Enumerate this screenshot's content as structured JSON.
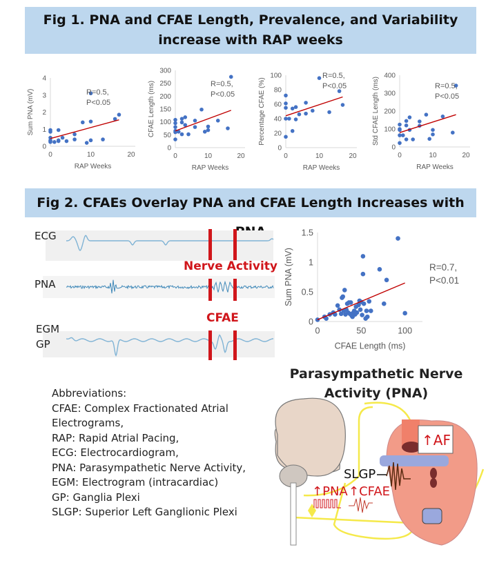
{
  "fig1": {
    "title": "Fig 1. PNA and CFAE Length, Prevalence, and Variability increase with RAP weeks"
  },
  "fig2": {
    "title": "Fig 2. CFAEs Overlay PNA and CFAE Length Increases with PNA",
    "traces": {
      "ecg": "ECG",
      "pna": "PNA",
      "egm": "EGM",
      "gp": "GP",
      "nerve_activity": "Nerve Activity",
      "cfae": "CFAE"
    }
  },
  "abbreviations": {
    "heading": "Abbreviations:",
    "lines": [
      "CFAE: Complex Fractionated Atrial",
      "Electrograms,",
      "RAP: Rapid Atrial Pacing,",
      "ECG: Electrocardiogram,",
      "PNA: Parasympathetic Nerve Activity,",
      "EGM: Electrogram (intracardiac)",
      "GP: Ganglia Plexi",
      "SLGP: Superior Left Ganglionic Plexi"
    ]
  },
  "illustration": {
    "title_line1": "Parasympathetic Nerve",
    "title_line2": "Activity (PNA)",
    "slgp": "SLGP",
    "pna": "PNA",
    "cfae": "CFAE",
    "af": "AF"
  },
  "colors": {
    "banner": "#bdd7ee",
    "point": "#4472c4",
    "trend": "#c00000",
    "highlight": "#d0161b",
    "nerve": "#f5e94a"
  },
  "chart_data": [
    {
      "type": "scatter",
      "xlabel": "RAP Weeks",
      "ylabel": "Sum PNA (mV)",
      "xlim": [
        0,
        20
      ],
      "ylim": [
        0,
        4
      ],
      "xticks": [
        0,
        10,
        20
      ],
      "yticks": [
        0,
        1,
        2,
        3,
        4
      ],
      "annotation": [
        "R=0.5,",
        "P<0.05"
      ],
      "trend": [
        [
          0,
          0.45
        ],
        [
          17,
          1.55
        ]
      ],
      "points": [
        [
          0,
          0.95
        ],
        [
          0,
          0.85
        ],
        [
          0,
          0.5
        ],
        [
          0,
          0.35
        ],
        [
          0,
          0.3
        ],
        [
          0,
          0.25
        ],
        [
          1,
          0.25
        ],
        [
          2,
          0.95
        ],
        [
          2,
          0.35
        ],
        [
          2,
          0.3
        ],
        [
          3,
          0.5
        ],
        [
          4,
          0.3
        ],
        [
          6,
          0.7
        ],
        [
          6,
          0.4
        ],
        [
          8,
          1.4
        ],
        [
          9,
          0.2
        ],
        [
          10,
          3.1
        ],
        [
          10,
          1.45
        ],
        [
          10,
          0.35
        ],
        [
          13,
          0.4
        ],
        [
          16,
          1.6
        ],
        [
          17,
          1.85
        ]
      ]
    },
    {
      "type": "scatter",
      "xlabel": "RAP Weeks",
      "ylabel": "CFAE Length (ms)",
      "xlim": [
        0,
        20
      ],
      "ylim": [
        0,
        300
      ],
      "xticks": [
        0,
        10,
        20
      ],
      "yticks": [
        0,
        50,
        100,
        150,
        200,
        250,
        300
      ],
      "annotation": [
        "R=0.5,",
        "P<0.05"
      ],
      "trend": [
        [
          0,
          65
        ],
        [
          17,
          145
        ]
      ],
      "points": [
        [
          0,
          108
        ],
        [
          0,
          95
        ],
        [
          0,
          80
        ],
        [
          0,
          65
        ],
        [
          0,
          60
        ],
        [
          0,
          32
        ],
        [
          1,
          62
        ],
        [
          2,
          112
        ],
        [
          2,
          98
        ],
        [
          2,
          52
        ],
        [
          3,
          118
        ],
        [
          3,
          88
        ],
        [
          4,
          52
        ],
        [
          6,
          105
        ],
        [
          6,
          80
        ],
        [
          8,
          148
        ],
        [
          9,
          62
        ],
        [
          10,
          82
        ],
        [
          10,
          68
        ],
        [
          13,
          105
        ],
        [
          16,
          75
        ],
        [
          17,
          275
        ]
      ]
    },
    {
      "type": "scatter",
      "xlabel": "RAP Weeks",
      "ylabel": "Percentage CFAE (%)",
      "xlim": [
        0,
        20
      ],
      "ylim": [
        0,
        100
      ],
      "xticks": [
        0,
        10,
        20
      ],
      "yticks": [
        0,
        20,
        40,
        60,
        80,
        100
      ],
      "annotation": [
        "R=0.5,",
        "P<0.05"
      ],
      "trend": [
        [
          0,
          44
        ],
        [
          17,
          70
        ]
      ],
      "points": [
        [
          0,
          72
        ],
        [
          0,
          61
        ],
        [
          0,
          55
        ],
        [
          0,
          40
        ],
        [
          0,
          15
        ],
        [
          1,
          40
        ],
        [
          2,
          54
        ],
        [
          2,
          23
        ],
        [
          3,
          56
        ],
        [
          3,
          39
        ],
        [
          4,
          46
        ],
        [
          6,
          62
        ],
        [
          6,
          47
        ],
        [
          8,
          51
        ],
        [
          10,
          96
        ],
        [
          13,
          49
        ],
        [
          16,
          78
        ],
        [
          17,
          59
        ]
      ]
    },
    {
      "type": "scatter",
      "xlabel": "RAP Weeks",
      "ylabel": "Std CFAE Length (ms)",
      "xlim": [
        0,
        20
      ],
      "ylim": [
        0,
        400
      ],
      "xticks": [
        0,
        10,
        20
      ],
      "yticks": [
        0,
        100,
        200,
        300,
        400
      ],
      "annotation": [
        "R=0.5,",
        "P<0.05"
      ],
      "trend": [
        [
          0,
          80
        ],
        [
          17,
          180
        ]
      ],
      "points": [
        [
          0,
          125
        ],
        [
          0,
          100
        ],
        [
          0,
          95
        ],
        [
          0,
          65
        ],
        [
          0,
          22
        ],
        [
          1,
          65
        ],
        [
          2,
          145
        ],
        [
          2,
          120
        ],
        [
          2,
          42
        ],
        [
          3,
          165
        ],
        [
          3,
          95
        ],
        [
          4,
          42
        ],
        [
          6,
          142
        ],
        [
          6,
          118
        ],
        [
          8,
          180
        ],
        [
          9,
          45
        ],
        [
          10,
          95
        ],
        [
          10,
          70
        ],
        [
          13,
          170
        ],
        [
          16,
          80
        ],
        [
          17,
          342
        ]
      ]
    },
    {
      "type": "scatter",
      "xlabel": "CFAE Length (ms)",
      "ylabel": "Sum PNA (mV)",
      "xlim": [
        0,
        120
      ],
      "ylim": [
        0,
        1.5
      ],
      "xticks": [
        0,
        50,
        100
      ],
      "yticks": [
        0,
        0.5,
        1,
        1.5
      ],
      "annotation": [
        "R=0.7,",
        "P<0.01"
      ],
      "trend": [
        [
          0,
          0.03
        ],
        [
          100,
          0.65
        ]
      ],
      "points": [
        [
          0,
          0.03
        ],
        [
          8,
          0.08
        ],
        [
          10,
          0.05
        ],
        [
          14,
          0.12
        ],
        [
          18,
          0.15
        ],
        [
          20,
          0.12
        ],
        [
          23,
          0.27
        ],
        [
          25,
          0.2
        ],
        [
          27,
          0.13
        ],
        [
          28,
          0.4
        ],
        [
          29,
          0.42
        ],
        [
          30,
          0.18
        ],
        [
          31,
          0.53
        ],
        [
          32,
          0.12
        ],
        [
          33,
          0.2
        ],
        [
          34,
          0.3
        ],
        [
          35,
          0.15
        ],
        [
          36,
          0.32
        ],
        [
          37,
          0.13
        ],
        [
          38,
          0.32
        ],
        [
          39,
          0.1
        ],
        [
          40,
          0.08
        ],
        [
          41,
          0.15
        ],
        [
          42,
          0.18
        ],
        [
          43,
          0.12
        ],
        [
          44,
          0.25
        ],
        [
          45,
          0.15
        ],
        [
          47,
          0.28
        ],
        [
          48,
          0.35
        ],
        [
          49,
          0.2
        ],
        [
          50,
          0.33
        ],
        [
          51,
          0.11
        ],
        [
          52,
          0.8
        ],
        [
          52,
          1.1
        ],
        [
          53,
          0.3
        ],
        [
          55,
          0.05
        ],
        [
          56,
          0.18
        ],
        [
          57,
          0.08
        ],
        [
          59,
          0.34
        ],
        [
          61,
          0.18
        ],
        [
          71,
          0.88
        ],
        [
          76,
          0.3
        ],
        [
          79,
          0.7
        ],
        [
          92,
          1.4
        ],
        [
          100,
          0.14
        ]
      ]
    }
  ]
}
